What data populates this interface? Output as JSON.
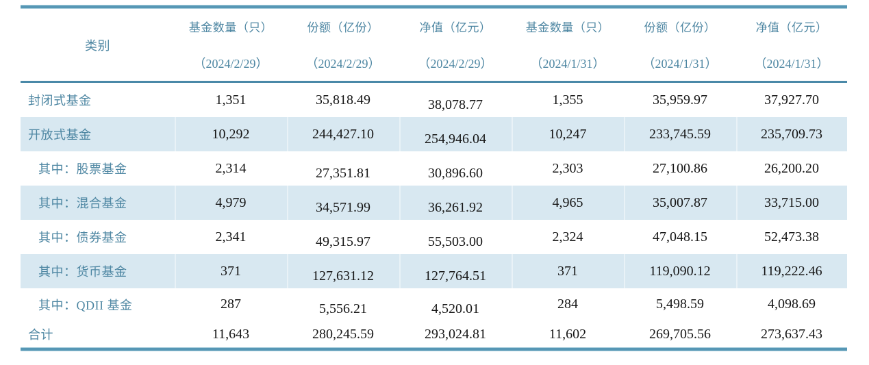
{
  "table": {
    "category_header": "类别",
    "columns": [
      {
        "label": "基金数量（只）",
        "sub": "（2024/2/29）"
      },
      {
        "label": "份额（亿份）",
        "sub": "（2024/2/29）"
      },
      {
        "label": "净值（亿元）",
        "sub": "（2024/2/29）"
      },
      {
        "label": "基金数量（只）",
        "sub": "（2024/1/31）"
      },
      {
        "label": "份额（亿份）",
        "sub": "（2024/1/31）"
      },
      {
        "label": "净值（亿元）",
        "sub": "（2024/1/31）"
      }
    ],
    "rows": [
      {
        "label": "封闭式基金",
        "indent": false,
        "shaded": false,
        "values": [
          "1,351",
          "35,818.49",
          "38,078.77",
          "1,355",
          "35,959.97",
          "37,927.70"
        ]
      },
      {
        "label": "开放式基金",
        "indent": false,
        "shaded": true,
        "values": [
          "10,292",
          "244,427.10",
          "254,946.04",
          "10,247",
          "233,745.59",
          "235,709.73"
        ]
      },
      {
        "label": "其中：股票基金",
        "indent": true,
        "shaded": false,
        "values": [
          "2,314",
          "27,351.81",
          "30,896.60",
          "2,303",
          "27,100.86",
          "26,200.20"
        ]
      },
      {
        "label": "其中：混合基金",
        "indent": true,
        "shaded": true,
        "values": [
          "4,979",
          "34,571.99",
          "36,261.92",
          "4,965",
          "35,007.87",
          "33,715.00"
        ]
      },
      {
        "label": "其中：债券基金",
        "indent": true,
        "shaded": false,
        "values": [
          "2,341",
          "49,315.97",
          "55,503.00",
          "2,324",
          "47,048.15",
          "52,473.38"
        ]
      },
      {
        "label": "其中：货币基金",
        "indent": true,
        "shaded": true,
        "values": [
          "371",
          "127,631.12",
          "127,764.51",
          "371",
          "119,090.12",
          "119,222.46"
        ]
      },
      {
        "label": "其中：QDII 基金",
        "indent": true,
        "shaded": false,
        "values": [
          "287",
          "5,556.21",
          "4,520.01",
          "284",
          "5,498.59",
          "4,098.69"
        ]
      },
      {
        "label": "合计",
        "indent": false,
        "shaded": false,
        "values": [
          "11,643",
          "280,245.59",
          "293,024.81",
          "11,602",
          "269,705.56",
          "273,637.43"
        ]
      }
    ]
  },
  "colors": {
    "accent_text": "#4d86a2",
    "border_line": "#5697b5",
    "row_shade": "#d8e8f1",
    "number_text": "#161616"
  }
}
